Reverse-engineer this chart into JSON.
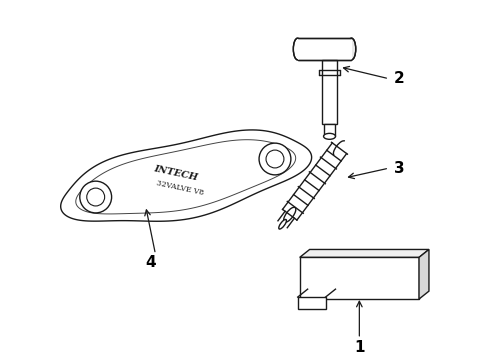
{
  "bg_color": "#ffffff",
  "line_color": "#1a1a1a",
  "label_color": "#000000",
  "lw": 1.0
}
